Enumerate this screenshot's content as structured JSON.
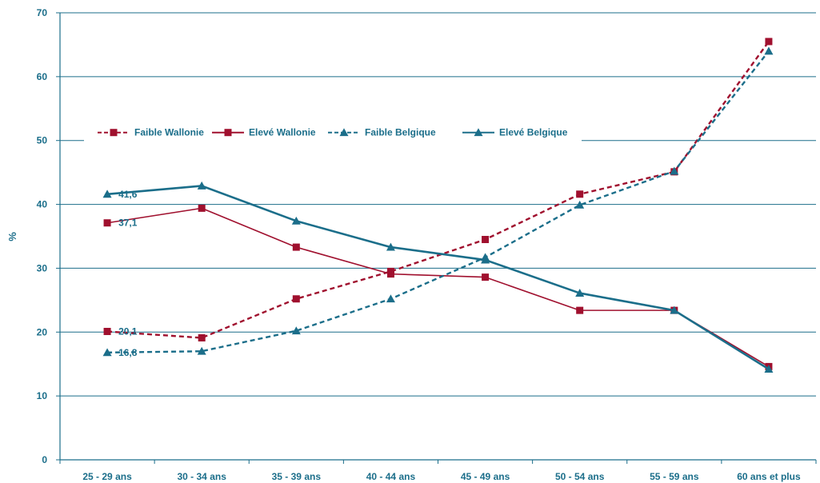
{
  "chart_data": {
    "type": "line",
    "title": "",
    "xlabel": "",
    "ylabel": "%",
    "ylim": [
      0,
      70
    ],
    "yticks": [
      0,
      10,
      20,
      30,
      40,
      50,
      60,
      70
    ],
    "grid": "horizontal",
    "legend_position": "top",
    "categories": [
      "25 - 29 ans",
      "30 - 34 ans",
      "35 - 39 ans",
      "40 - 44 ans",
      "45 - 49 ans",
      "50 - 54 ans",
      "55 - 59 ans",
      "60 ans et plus"
    ],
    "series": [
      {
        "name": "Faible Wallonie",
        "color": "#a0102e",
        "dash": "dashed",
        "marker": "square",
        "values": [
          20.1,
          19.1,
          25.2,
          29.5,
          34.5,
          41.6,
          45.1,
          65.5
        ],
        "data_labels": [
          "20,1",
          "",
          "",
          "",
          "",
          "",
          "",
          ""
        ]
      },
      {
        "name": "Elevé Wallonie",
        "color": "#a0102e",
        "dash": "solid",
        "marker": "square",
        "values": [
          37.1,
          39.4,
          33.3,
          29.1,
          28.6,
          23.4,
          23.4,
          14.6
        ],
        "data_labels": [
          "37,1",
          "",
          "",
          "",
          "",
          "",
          "",
          ""
        ]
      },
      {
        "name": "Faible Belgique",
        "color": "#1b6e8a",
        "dash": "dashed",
        "marker": "triangle",
        "values": [
          16.8,
          17.0,
          20.2,
          25.2,
          31.7,
          39.9,
          45.2,
          64.0
        ],
        "data_labels": [
          "16,8",
          "",
          "",
          "",
          "",
          "",
          "",
          ""
        ]
      },
      {
        "name": "Elevé Belgique",
        "color": "#1b6e8a",
        "dash": "solid",
        "marker": "triangle",
        "values": [
          41.6,
          42.9,
          37.4,
          33.3,
          31.3,
          26.1,
          23.4,
          14.2
        ],
        "data_labels": [
          "41,6",
          "",
          "",
          "",
          "",
          "",
          "",
          ""
        ]
      }
    ]
  }
}
